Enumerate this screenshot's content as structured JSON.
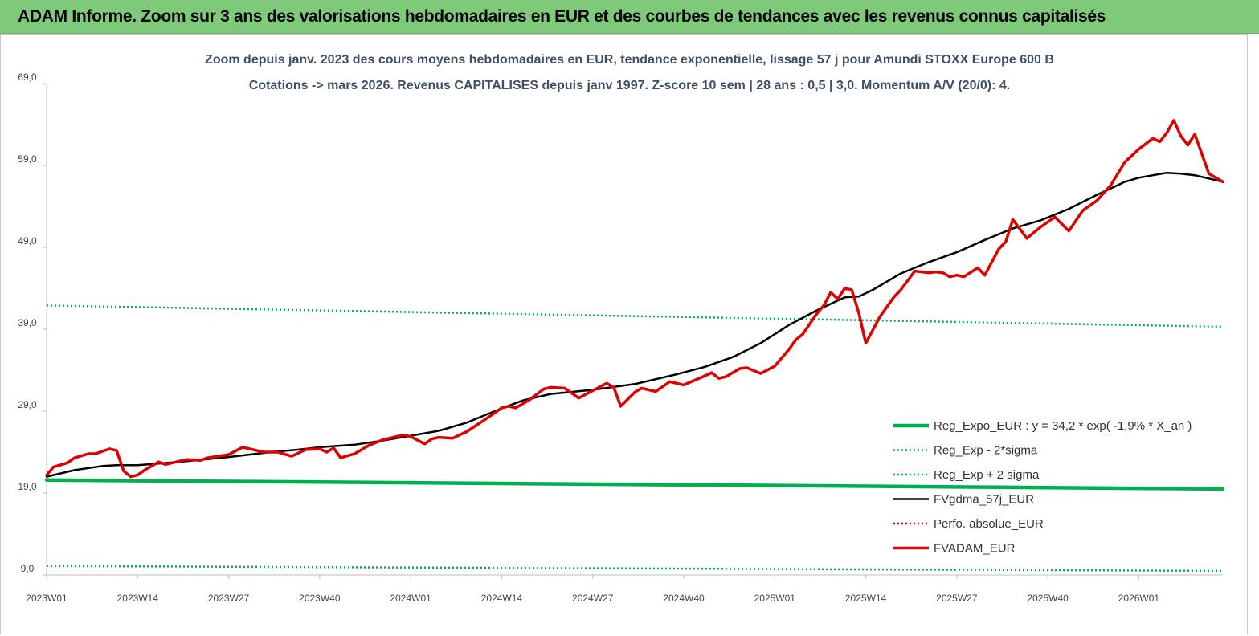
{
  "header": {
    "title": "ADAM Informe. Zoom sur 3 ans des valorisations hebdomadaires en EUR et des courbes de tendances avec les revenus connus capitalisés"
  },
  "chart_data": {
    "type": "line",
    "title_line1": "Zoom depuis janv. 2023 des cours moyens hebdomadaires en EUR, tendance exponentielle, lissage 57 j pour Amundi STOXX Europe 600 B",
    "title_line2": "Cotations -> mars 2026. Revenus CAPITALISES depuis janv 1997. Z-score 10 sem | 28 ans : 0,5 | 3,0. Momentum A/V (20/0): 4.",
    "ylim": [
      9,
      69
    ],
    "yticks": [
      "9,0",
      "19,0",
      "29,0",
      "39,0",
      "49,0",
      "59,0",
      "69,0"
    ],
    "ytick_values": [
      9,
      19,
      29,
      39,
      49,
      59,
      69
    ],
    "x_range": [
      0,
      168
    ],
    "xticks": [
      "2023W01",
      "2023W14",
      "2023W27",
      "2023W40",
      "2024W01",
      "2024W14",
      "2024W27",
      "2024W40",
      "2025W01",
      "2025W14",
      "2025W27",
      "2025W40",
      "2026W01"
    ],
    "xtick_values": [
      0,
      13,
      26,
      39,
      52,
      65,
      78,
      91,
      104,
      117,
      130,
      143,
      156
    ],
    "legend_position": "bottom-right",
    "grid": false,
    "series": [
      {
        "name": "Reg_Expo_EUR : y = 34,2 * exp( -1,9% *  X_an )",
        "color": "#00b050",
        "style": "solid-thick",
        "x": [
          0,
          168
        ],
        "y": [
          20.6,
          19.5
        ]
      },
      {
        "name": "Reg_Exp - 2*sigma",
        "color": "#00b050",
        "style": "dotted",
        "x": [
          0,
          168
        ],
        "y": [
          10.1,
          9.5
        ]
      },
      {
        "name": "Reg_Exp + 2 sigma",
        "color": "#00b050",
        "style": "dotted",
        "x": [
          0,
          168
        ],
        "y": [
          41.9,
          39.3
        ]
      },
      {
        "name": "FVgdma_57j_EUR",
        "color": "#000000",
        "style": "solid",
        "x": [
          0,
          4,
          8,
          10,
          13,
          16,
          20,
          26,
          32,
          36,
          39,
          44,
          48,
          52,
          56,
          60,
          64,
          68,
          72,
          78,
          84,
          90,
          94,
          98,
          102,
          106,
          110,
          114,
          116,
          118,
          122,
          126,
          130,
          134,
          138,
          142,
          146,
          150,
          154,
          156,
          158,
          160,
          162,
          164,
          166,
          168
        ],
        "y": [
          21.0,
          21.8,
          22.3,
          22.4,
          22.4,
          22.6,
          22.9,
          23.4,
          24.0,
          24.3,
          24.6,
          24.9,
          25.4,
          26.0,
          26.6,
          27.6,
          29.0,
          30.3,
          31.1,
          31.6,
          32.3,
          33.5,
          34.4,
          35.6,
          37.3,
          39.5,
          41.3,
          42.9,
          43.0,
          43.8,
          45.8,
          47.2,
          48.4,
          49.9,
          51.3,
          52.3,
          53.7,
          55.4,
          57.0,
          57.5,
          57.8,
          58.1,
          58.0,
          57.8,
          57.4,
          57.0
        ]
      },
      {
        "name": "Perfo. absolue_EUR",
        "color": "#c00000",
        "style": "dotted",
        "x": [],
        "y": []
      },
      {
        "name": "FVADAM_EUR",
        "color": "#e00000",
        "style": "solid-thick",
        "x": [
          0,
          1,
          3,
          4,
          6,
          7,
          9,
          10,
          11,
          12,
          13,
          14,
          16,
          17,
          19,
          20,
          22,
          23,
          26,
          28,
          31,
          33,
          35,
          37,
          39,
          40,
          41,
          42,
          44,
          46,
          48,
          50,
          51,
          52,
          54,
          55,
          56,
          58,
          60,
          63,
          65,
          66,
          67,
          69,
          71,
          72,
          74,
          76,
          80,
          81,
          82,
          84,
          85,
          87,
          88,
          89,
          91,
          94,
          95,
          96,
          97,
          99,
          100,
          102,
          104,
          106,
          107,
          108,
          110,
          111,
          112,
          113,
          114,
          115,
          116,
          117,
          119,
          121,
          122,
          124,
          126,
          127,
          128,
          129,
          130,
          131,
          133,
          134,
          135,
          136,
          137,
          138,
          140,
          142,
          144,
          146,
          148,
          150,
          152,
          154,
          155,
          156,
          158,
          159,
          160,
          161,
          162,
          163,
          164,
          166,
          168
        ],
        "y": [
          21.2,
          22.2,
          22.7,
          23.3,
          23.8,
          23.8,
          24.4,
          24.2,
          21.7,
          21.0,
          21.2,
          21.8,
          22.8,
          22.5,
          22.9,
          23.1,
          23.0,
          23.3,
          23.7,
          24.6,
          24.0,
          24.0,
          23.5,
          24.3,
          24.4,
          24.0,
          24.5,
          23.3,
          23.8,
          24.8,
          25.5,
          25.9,
          26.1,
          25.9,
          25.0,
          25.6,
          25.8,
          25.7,
          26.5,
          28.2,
          29.4,
          29.6,
          29.4,
          30.4,
          31.7,
          31.9,
          31.8,
          30.6,
          32.4,
          31.9,
          29.6,
          31.3,
          31.8,
          31.4,
          32.0,
          32.6,
          32.2,
          33.3,
          33.7,
          33.0,
          33.2,
          34.2,
          34.3,
          33.6,
          34.5,
          36.5,
          37.7,
          38.4,
          40.9,
          41.9,
          43.5,
          42.7,
          44.0,
          43.8,
          41.0,
          37.3,
          40.5,
          42.9,
          43.8,
          46.1,
          45.9,
          46.0,
          45.9,
          45.4,
          45.6,
          45.4,
          46.5,
          45.6,
          47.2,
          48.8,
          49.7,
          52.4,
          50.1,
          51.5,
          52.7,
          51.0,
          53.5,
          54.7,
          56.6,
          59.4,
          60.2,
          61.0,
          62.3,
          61.9,
          63.0,
          64.5,
          62.6,
          61.5,
          62.8,
          58.0,
          57.0
        ]
      }
    ]
  }
}
